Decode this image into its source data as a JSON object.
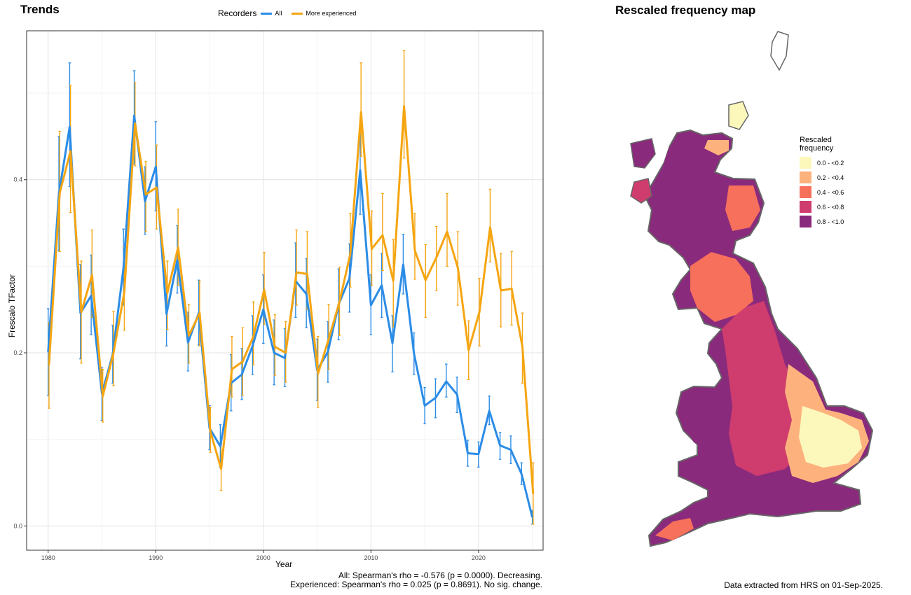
{
  "trends_title": "Trends",
  "map_title": "Rescaled frequency map",
  "legend": {
    "title": "Recorders",
    "items": [
      {
        "label": "All",
        "color": "#2B8CE6"
      },
      {
        "label": "More experienced",
        "color": "#F5A511"
      }
    ]
  },
  "stats_text": {
    "all": "All: Spearman's rho = -0.576 (p = 0.0000). Decreasing.",
    "experienced": "Experienced: Spearman's rho = 0.025 (p = 0.8691). No sig. change."
  },
  "caption": "Data extracted from HRS on 01-Sep-2025.",
  "map_legend": {
    "title_line1": "Rescaled",
    "title_line2": "frequency",
    "items": [
      {
        "label": "0.0 - <0.2",
        "color": "#FCF8BC"
      },
      {
        "label": "0.2 - <0.4",
        "color": "#FDB27D"
      },
      {
        "label": "0.4 - <0.6",
        "color": "#F7705C"
      },
      {
        "label": "0.6 - <0.8",
        "color": "#CF3C6E"
      },
      {
        "label": "0.8 - <1.0",
        "color": "#8A2A7C"
      }
    ]
  },
  "chart_data": {
    "type": "line",
    "title": "Trends",
    "xlabel": "Year",
    "ylabel": "Frescalo TFactor",
    "xlim": [
      1978,
      2026
    ],
    "ylim": [
      -0.028,
      0.572
    ],
    "xticks": [
      1980,
      1990,
      2000,
      2010,
      2020
    ],
    "yticks": [
      0.0,
      0.2,
      0.4
    ],
    "ytick_labels": [
      "0.0",
      "0.2",
      "0.4"
    ],
    "grid": true,
    "x": [
      1980,
      1981,
      1982,
      1983,
      1984,
      1985,
      1986,
      1987,
      1988,
      1989,
      1990,
      1991,
      1992,
      1993,
      1994,
      1995,
      1996,
      1997,
      1998,
      1999,
      2000,
      2001,
      2002,
      2003,
      2004,
      2005,
      2006,
      2007,
      2008,
      2009,
      2010,
      2011,
      2012,
      2013,
      2014,
      2015,
      2016,
      2017,
      2018,
      2019,
      2020,
      2021,
      2022,
      2023,
      2024,
      2025
    ],
    "series": [
      {
        "name": "All",
        "color": "#2B8CE6",
        "values": [
          0.201,
          0.384,
          0.461,
          0.246,
          0.266,
          0.153,
          0.198,
          0.298,
          0.474,
          0.375,
          0.415,
          0.245,
          0.307,
          0.212,
          0.246,
          0.113,
          0.092,
          0.165,
          0.175,
          0.208,
          0.25,
          0.2,
          0.194,
          0.283,
          0.268,
          0.18,
          0.201,
          0.256,
          0.286,
          0.411,
          0.255,
          0.278,
          0.211,
          0.302,
          0.199,
          0.139,
          0.148,
          0.167,
          0.152,
          0.084,
          0.083,
          0.133,
          0.093,
          0.088,
          0.06,
          0.01
        ],
        "lower": [
          0.151,
          0.318,
          0.392,
          0.193,
          0.221,
          0.122,
          0.165,
          0.255,
          0.418,
          0.337,
          0.364,
          0.208,
          0.269,
          0.179,
          0.209,
          0.088,
          0.068,
          0.133,
          0.146,
          0.175,
          0.211,
          0.163,
          0.161,
          0.241,
          0.229,
          0.145,
          0.166,
          0.215,
          0.247,
          0.36,
          0.221,
          0.241,
          0.178,
          0.268,
          0.175,
          0.118,
          0.125,
          0.149,
          0.131,
          0.069,
          0.068,
          0.117,
          0.077,
          0.072,
          0.048,
          0.002
        ],
        "upper": [
          0.251,
          0.45,
          0.535,
          0.302,
          0.313,
          0.183,
          0.232,
          0.343,
          0.526,
          0.415,
          0.467,
          0.283,
          0.347,
          0.247,
          0.284,
          0.139,
          0.117,
          0.198,
          0.205,
          0.243,
          0.29,
          0.238,
          0.228,
          0.327,
          0.309,
          0.216,
          0.236,
          0.297,
          0.326,
          0.459,
          0.29,
          0.315,
          0.243,
          0.337,
          0.223,
          0.16,
          0.17,
          0.187,
          0.172,
          0.099,
          0.097,
          0.15,
          0.108,
          0.104,
          0.073,
          0.018
        ]
      },
      {
        "name": "More experienced",
        "color": "#F5A511",
        "values": [
          0.186,
          0.385,
          0.433,
          0.247,
          0.29,
          0.15,
          0.2,
          0.27,
          0.465,
          0.383,
          0.391,
          0.269,
          0.322,
          0.22,
          0.246,
          0.109,
          0.066,
          0.181,
          0.19,
          0.219,
          0.273,
          0.207,
          0.2,
          0.293,
          0.291,
          0.176,
          0.216,
          0.259,
          0.314,
          0.478,
          0.32,
          0.336,
          0.283,
          0.485,
          0.318,
          0.284,
          0.31,
          0.34,
          0.298,
          0.203,
          0.247,
          0.345,
          0.272,
          0.274,
          0.207,
          0.037
        ],
        "lower": [
          0.136,
          0.317,
          0.362,
          0.188,
          0.241,
          0.12,
          0.162,
          0.226,
          0.416,
          0.34,
          0.343,
          0.227,
          0.278,
          0.188,
          0.208,
          0.085,
          0.041,
          0.149,
          0.151,
          0.186,
          0.233,
          0.174,
          0.166,
          0.255,
          0.25,
          0.137,
          0.181,
          0.22,
          0.276,
          0.427,
          0.278,
          0.295,
          0.23,
          0.425,
          0.285,
          0.241,
          0.272,
          0.3,
          0.255,
          0.169,
          0.208,
          0.305,
          0.23,
          0.232,
          0.165,
          0.002
        ],
        "upper": [
          0.235,
          0.456,
          0.509,
          0.306,
          0.342,
          0.181,
          0.248,
          0.323,
          0.512,
          0.421,
          0.44,
          0.306,
          0.366,
          0.256,
          0.283,
          0.137,
          0.095,
          0.219,
          0.229,
          0.259,
          0.316,
          0.244,
          0.236,
          0.342,
          0.34,
          0.219,
          0.256,
          0.299,
          0.361,
          0.535,
          0.364,
          0.384,
          0.331,
          0.549,
          0.361,
          0.325,
          0.346,
          0.384,
          0.34,
          0.237,
          0.286,
          0.389,
          0.315,
          0.317,
          0.246,
          0.073
        ]
      }
    ]
  }
}
